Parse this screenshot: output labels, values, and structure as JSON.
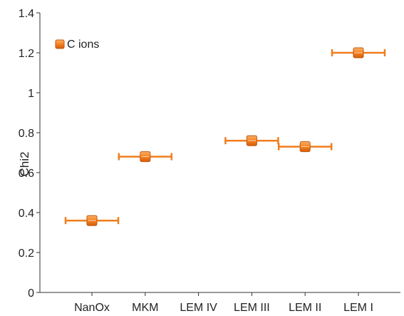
{
  "chart_data": {
    "type": "scatter",
    "title": "",
    "xlabel": "",
    "ylabel": "Chi2",
    "ylim": [
      0,
      1.4
    ],
    "yticks": [
      "0",
      "0.2",
      "0.4",
      "0.6",
      "0.8",
      "1",
      "1.2",
      "1.4"
    ],
    "categories": [
      "NanOx",
      "MKM",
      "LEM IV",
      "LEM III",
      "LEM II",
      "LEM I"
    ],
    "grid": false,
    "legend_position": "top-left",
    "series": [
      {
        "name": "C ions",
        "color": "#f07d1e",
        "marker": "square",
        "error_bars": "horizontal",
        "values": [
          0.36,
          0.68,
          null,
          0.76,
          0.73,
          1.2
        ]
      }
    ]
  }
}
